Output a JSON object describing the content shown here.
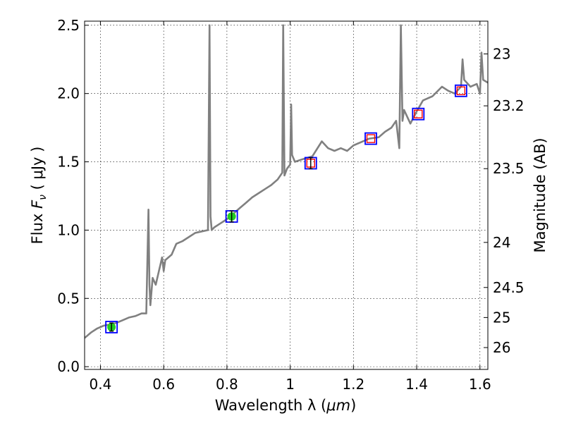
{
  "chart_data": {
    "type": "line",
    "title": "",
    "xlabel": "Wavelength  λ (μm)",
    "ylabel": "Flux  Fν  ( μJy )",
    "y2label": "Magnitude (AB)",
    "xlim": [
      0.35,
      1.625
    ],
    "ylim": [
      -0.02,
      2.53
    ],
    "grid": true,
    "x_ticks": [
      0.4,
      0.6,
      0.8,
      1.0,
      1.2,
      1.4,
      1.6
    ],
    "x_tick_labels": [
      "0.4",
      "0.6",
      "0.8",
      "1",
      "1.2",
      "1.4",
      "1.6"
    ],
    "y_ticks": [
      0.0,
      0.5,
      1.0,
      1.5,
      2.0,
      2.5
    ],
    "y_tick_labels": [
      "0.0",
      "0.5",
      "1.0",
      "1.5",
      "2.0",
      "2.5"
    ],
    "y2_ticks": [
      {
        "label": "23",
        "flux": 2.29
      },
      {
        "label": "23.2",
        "flux": 1.91
      },
      {
        "label": "23.5",
        "flux": 1.45
      },
      {
        "label": "24",
        "flux": 0.91
      },
      {
        "label": "24.5",
        "flux": 0.58
      },
      {
        "label": "25",
        "flux": 0.36
      },
      {
        "label": "26",
        "flux": 0.14
      }
    ],
    "colors": {
      "spectrum": "#808080",
      "observed_face": "#22cc22",
      "model_box": "#0000ff",
      "upper_box": "#ff0000"
    },
    "spectrum": {
      "x": [
        0.35,
        0.37,
        0.39,
        0.41,
        0.43,
        0.45,
        0.47,
        0.49,
        0.51,
        0.53,
        0.545,
        0.552,
        0.555,
        0.558,
        0.565,
        0.575,
        0.585,
        0.59,
        0.595,
        0.6,
        0.605,
        0.615,
        0.625,
        0.64,
        0.66,
        0.68,
        0.7,
        0.72,
        0.74,
        0.745,
        0.748,
        0.752,
        0.76,
        0.78,
        0.8,
        0.82,
        0.84,
        0.86,
        0.88,
        0.9,
        0.92,
        0.94,
        0.96,
        0.975,
        0.978,
        0.982,
        0.99,
        1.0,
        1.003,
        1.006,
        1.015,
        1.04,
        1.07,
        1.1,
        1.12,
        1.14,
        1.16,
        1.18,
        1.2,
        1.22,
        1.25,
        1.28,
        1.3,
        1.32,
        1.335,
        1.345,
        1.35,
        1.355,
        1.36,
        1.38,
        1.4,
        1.42,
        1.45,
        1.48,
        1.5,
        1.52,
        1.54,
        1.545,
        1.55,
        1.57,
        1.59,
        1.6,
        1.605,
        1.61,
        1.625
      ],
      "y": [
        0.21,
        0.25,
        0.28,
        0.3,
        0.31,
        0.32,
        0.34,
        0.36,
        0.37,
        0.39,
        0.39,
        1.15,
        0.6,
        0.45,
        0.65,
        0.6,
        0.7,
        0.75,
        0.8,
        0.7,
        0.78,
        0.8,
        0.82,
        0.9,
        0.92,
        0.95,
        0.98,
        0.99,
        1.0,
        2.5,
        1.1,
        1.0,
        1.02,
        1.05,
        1.08,
        1.12,
        1.16,
        1.2,
        1.24,
        1.27,
        1.3,
        1.33,
        1.37,
        1.42,
        2.5,
        1.4,
        1.45,
        1.48,
        1.92,
        1.55,
        1.5,
        1.52,
        1.54,
        1.65,
        1.6,
        1.58,
        1.6,
        1.58,
        1.62,
        1.64,
        1.67,
        1.68,
        1.72,
        1.75,
        1.8,
        1.6,
        2.5,
        1.8,
        1.88,
        1.78,
        1.87,
        1.95,
        1.98,
        2.05,
        2.02,
        2.0,
        2.05,
        2.25,
        2.1,
        2.05,
        2.07,
        2.0,
        2.3,
        2.1,
        2.08
      ]
    },
    "photometry": [
      {
        "x": 0.435,
        "flux": 0.29,
        "err": 0.03,
        "type": "observed"
      },
      {
        "x": 0.815,
        "flux": 1.1,
        "err": 0.04,
        "type": "observed"
      },
      {
        "x": 1.065,
        "flux": 1.49,
        "err": 0.04,
        "type": "upper"
      },
      {
        "x": 1.255,
        "flux": 1.67,
        "type": "upper"
      },
      {
        "x": 1.405,
        "flux": 1.85,
        "type": "upper"
      },
      {
        "x": 1.54,
        "flux": 2.02,
        "type": "upper"
      }
    ]
  },
  "text": {
    "xlabel_main": "Wavelength  λ (",
    "xlabel_unit": "μm",
    "xlabel_close": ")",
    "ylabel_main": "Flux  ",
    "ylabel_symbol": "F",
    "ylabel_sub": "ν",
    "ylabel_unit": "  ( μJy )",
    "y2label": "Magnitude (AB)"
  }
}
